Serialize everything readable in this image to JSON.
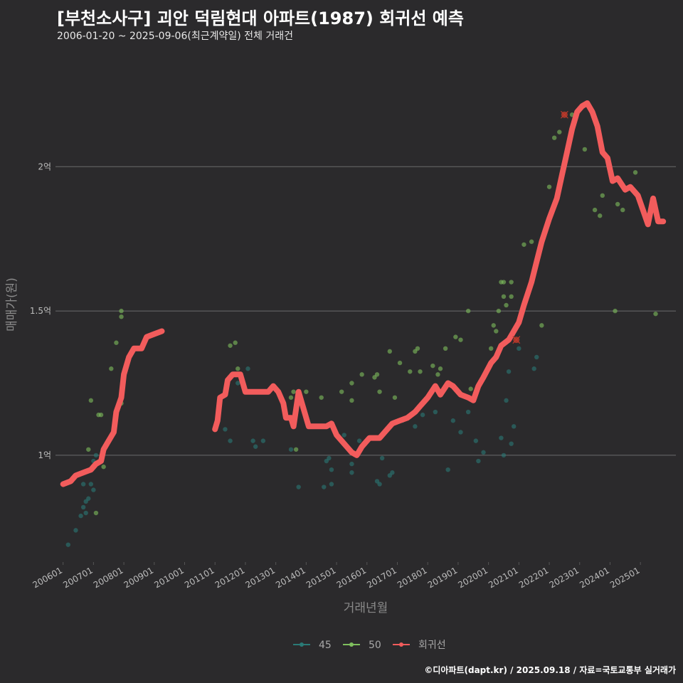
{
  "header": {
    "title": "[부천소사구] 괴안 덕림현대 아파트(1987) 회귀선 예측",
    "subtitle": "2006-01-20 ~ 2025-09-06(최근계약일) 전체 거래건"
  },
  "caption": "©디아파트(dapt.kr) / 2025.09.18 / 자료=국토교통부 실거래가",
  "colors": {
    "background": "#2b2a2c",
    "grid": "#6b6b6b",
    "series_45": "#2a7a76",
    "series_50": "#7fbf5e",
    "regression": "#f25c5c",
    "outlier": "#c0392b"
  },
  "chart_data": {
    "type": "scatter",
    "xlabel": "거래년월",
    "ylabel": "매매가(원)",
    "x_range": [
      "2005-10",
      "2026-03"
    ],
    "ylim": [
      0.63,
      2.4
    ],
    "y_unit": "억",
    "y_ticks": [
      {
        "value": 1.0,
        "label": "1억"
      },
      {
        "value": 1.5,
        "label": "1.5억"
      },
      {
        "value": 2.0,
        "label": "2억"
      }
    ],
    "x_ticks": [
      "200601",
      "200701",
      "200801",
      "200901",
      "201001",
      "201101",
      "201201",
      "201301",
      "201401",
      "201501",
      "201601",
      "201701",
      "201801",
      "201901",
      "202001",
      "202101",
      "202201",
      "202301",
      "202401",
      "202501"
    ],
    "grid": true,
    "legend_position": "bottom",
    "legend": [
      {
        "name": "45",
        "color": "#2a7a76"
      },
      {
        "name": "50",
        "color": "#7fbf5e"
      },
      {
        "name": "회귀선",
        "color": "#f25c5c"
      }
    ],
    "series": [
      {
        "name": "45",
        "points": [
          [
            "2006-03",
            0.69
          ],
          [
            "2006-06",
            0.74
          ],
          [
            "2006-08",
            0.79
          ],
          [
            "2006-09",
            0.82
          ],
          [
            "2006-10",
            0.84
          ],
          [
            "2006-11",
            0.85
          ],
          [
            "2006-12",
            0.9
          ],
          [
            "2007-01",
            0.98
          ],
          [
            "2007-02",
            1.0
          ],
          [
            "2007-01",
            0.88
          ],
          [
            "2006-10",
            0.8
          ],
          [
            "2006-09",
            0.9
          ],
          [
            "2011-05",
            1.09
          ],
          [
            "2011-07",
            1.05
          ],
          [
            "2011-10",
            1.25
          ],
          [
            "2012-02",
            1.3
          ],
          [
            "2012-04",
            1.05
          ],
          [
            "2012-05",
            1.03
          ],
          [
            "2012-08",
            1.05
          ],
          [
            "2013-07",
            1.02
          ],
          [
            "2013-10",
            0.89
          ],
          [
            "2014-08",
            0.89
          ],
          [
            "2014-09",
            0.98
          ],
          [
            "2014-10",
            0.99
          ],
          [
            "2014-11",
            0.95
          ],
          [
            "2014-11",
            0.9
          ],
          [
            "2015-04",
            1.07
          ],
          [
            "2015-07",
            0.97
          ],
          [
            "2015-07",
            0.94
          ],
          [
            "2015-10",
            1.05
          ],
          [
            "2016-02",
            1.06
          ],
          [
            "2016-05",
            0.91
          ],
          [
            "2016-06",
            0.9
          ],
          [
            "2016-07",
            0.99
          ],
          [
            "2016-10",
            0.93
          ],
          [
            "2016-11",
            0.94
          ],
          [
            "2017-03",
            1.12
          ],
          [
            "2017-08",
            1.1
          ],
          [
            "2017-10",
            1.17
          ],
          [
            "2017-11",
            1.14
          ],
          [
            "2018-04",
            1.15
          ],
          [
            "2018-09",
            0.95
          ],
          [
            "2018-11",
            1.12
          ],
          [
            "2019-02",
            1.08
          ],
          [
            "2019-05",
            1.15
          ],
          [
            "2019-08",
            1.05
          ],
          [
            "2019-09",
            0.98
          ],
          [
            "2019-11",
            1.01
          ],
          [
            "2020-06",
            1.06
          ],
          [
            "2020-07",
            1.0
          ],
          [
            "2020-08",
            1.19
          ],
          [
            "2020-09",
            1.29
          ],
          [
            "2020-10",
            1.04
          ],
          [
            "2020-11",
            1.1
          ],
          [
            "2021-01",
            1.37
          ],
          [
            "2021-07",
            1.3
          ],
          [
            "2021-08",
            1.34
          ]
        ]
      },
      {
        "name": "50",
        "points": [
          [
            "2006-11",
            1.02
          ],
          [
            "2006-12",
            1.19
          ],
          [
            "2007-02",
            0.8
          ],
          [
            "2007-03",
            1.14
          ],
          [
            "2007-04",
            1.14
          ],
          [
            "2007-05",
            0.96
          ],
          [
            "2007-08",
            1.3
          ],
          [
            "2007-10",
            1.39
          ],
          [
            "2007-12",
            1.18
          ],
          [
            "2007-12",
            1.48
          ],
          [
            "2007-12",
            1.5
          ],
          [
            "2011-07",
            1.38
          ],
          [
            "2011-09",
            1.39
          ],
          [
            "2011-10",
            1.3
          ],
          [
            "2013-07",
            1.2
          ],
          [
            "2013-08",
            1.22
          ],
          [
            "2013-09",
            1.02
          ],
          [
            "2014-01",
            1.22
          ],
          [
            "2014-07",
            1.2
          ],
          [
            "2015-03",
            1.22
          ],
          [
            "2015-07",
            1.19
          ],
          [
            "2015-07",
            1.25
          ],
          [
            "2015-11",
            1.28
          ],
          [
            "2016-04",
            1.27
          ],
          [
            "2016-05",
            1.28
          ],
          [
            "2016-06",
            1.22
          ],
          [
            "2016-10",
            1.36
          ],
          [
            "2016-12",
            1.2
          ],
          [
            "2017-02",
            1.32
          ],
          [
            "2017-06",
            1.29
          ],
          [
            "2017-08",
            1.36
          ],
          [
            "2017-09",
            1.37
          ],
          [
            "2017-10",
            1.29
          ],
          [
            "2018-03",
            1.31
          ],
          [
            "2018-05",
            1.28
          ],
          [
            "2018-06",
            1.3
          ],
          [
            "2018-08",
            1.37
          ],
          [
            "2018-12",
            1.41
          ],
          [
            "2019-02",
            1.4
          ],
          [
            "2019-05",
            1.5
          ],
          [
            "2019-06",
            1.23
          ],
          [
            "2020-02",
            1.37
          ],
          [
            "2020-03",
            1.33
          ],
          [
            "2020-03",
            1.45
          ],
          [
            "2020-04",
            1.43
          ],
          [
            "2020-05",
            1.5
          ],
          [
            "2020-06",
            1.6
          ],
          [
            "2020-07",
            1.6
          ],
          [
            "2020-07",
            1.55
          ],
          [
            "2020-08",
            1.52
          ],
          [
            "2020-10",
            1.55
          ],
          [
            "2020-10",
            1.6
          ],
          [
            "2021-03",
            1.73
          ],
          [
            "2021-06",
            1.74
          ],
          [
            "2021-10",
            1.45
          ],
          [
            "2022-01",
            1.93
          ],
          [
            "2022-03",
            2.1
          ],
          [
            "2022-05",
            2.12
          ],
          [
            "2022-10",
            2.18
          ],
          [
            "2023-03",
            2.06
          ],
          [
            "2023-07",
            1.85
          ],
          [
            "2023-09",
            1.83
          ],
          [
            "2023-10",
            1.9
          ],
          [
            "2024-03",
            1.5
          ],
          [
            "2024-04",
            1.87
          ],
          [
            "2024-06",
            1.85
          ],
          [
            "2024-11",
            1.98
          ],
          [
            "2025-07",
            1.49
          ]
        ]
      }
    ],
    "outliers": [
      [
        "2022-07",
        2.18
      ],
      [
        "2020-12",
        1.4
      ]
    ],
    "regression_segments": [
      [
        [
          "2006-01",
          0.9
        ],
        [
          "2006-04",
          0.91
        ],
        [
          "2006-06",
          0.93
        ],
        [
          "2006-09",
          0.94
        ],
        [
          "2006-12",
          0.95
        ],
        [
          "2007-02",
          0.97
        ],
        [
          "2007-04",
          0.98
        ],
        [
          "2007-05",
          1.02
        ],
        [
          "2007-07",
          1.05
        ],
        [
          "2007-09",
          1.08
        ],
        [
          "2007-10",
          1.15
        ],
        [
          "2007-12",
          1.2
        ],
        [
          "2008-01",
          1.28
        ],
        [
          "2008-03",
          1.34
        ],
        [
          "2008-05",
          1.37
        ],
        [
          "2008-08",
          1.37
        ],
        [
          "2008-10",
          1.41
        ],
        [
          "2009-01",
          1.42
        ],
        [
          "2009-04",
          1.43
        ]
      ],
      [
        [
          "2011-01",
          1.09
        ],
        [
          "2011-02",
          1.12
        ],
        [
          "2011-03",
          1.2
        ],
        [
          "2011-05",
          1.21
        ],
        [
          "2011-06",
          1.26
        ],
        [
          "2011-08",
          1.28
        ],
        [
          "2011-11",
          1.28
        ],
        [
          "2012-01",
          1.22
        ],
        [
          "2012-05",
          1.22
        ],
        [
          "2012-10",
          1.22
        ],
        [
          "2012-12",
          1.24
        ],
        [
          "2013-02",
          1.22
        ],
        [
          "2013-04",
          1.18
        ],
        [
          "2013-05",
          1.13
        ],
        [
          "2013-07",
          1.13
        ],
        [
          "2013-08",
          1.1
        ],
        [
          "2013-10",
          1.22
        ],
        [
          "2013-12",
          1.16
        ],
        [
          "2014-02",
          1.1
        ],
        [
          "2014-06",
          1.1
        ],
        [
          "2014-09",
          1.1
        ],
        [
          "2014-11",
          1.11
        ],
        [
          "2015-01",
          1.07
        ],
        [
          "2015-03",
          1.05
        ],
        [
          "2015-05",
          1.03
        ],
        [
          "2015-07",
          1.01
        ],
        [
          "2015-09",
          1.0
        ],
        [
          "2015-11",
          1.03
        ],
        [
          "2016-02",
          1.06
        ],
        [
          "2016-06",
          1.06
        ],
        [
          "2016-08",
          1.08
        ],
        [
          "2016-11",
          1.11
        ],
        [
          "2017-02",
          1.12
        ],
        [
          "2017-05",
          1.13
        ],
        [
          "2017-08",
          1.15
        ],
        [
          "2017-10",
          1.17
        ],
        [
          "2018-01",
          1.2
        ],
        [
          "2018-04",
          1.24
        ],
        [
          "2018-06",
          1.21
        ],
        [
          "2018-09",
          1.25
        ],
        [
          "2018-11",
          1.24
        ],
        [
          "2019-02",
          1.21
        ],
        [
          "2019-05",
          1.2
        ],
        [
          "2019-07",
          1.19
        ],
        [
          "2019-09",
          1.24
        ],
        [
          "2019-11",
          1.27
        ],
        [
          "2020-02",
          1.32
        ],
        [
          "2020-04",
          1.34
        ],
        [
          "2020-06",
          1.38
        ],
        [
          "2020-09",
          1.4
        ],
        [
          "2020-11",
          1.43
        ],
        [
          "2021-01",
          1.46
        ],
        [
          "2021-03",
          1.52
        ],
        [
          "2021-06",
          1.6
        ],
        [
          "2021-08",
          1.67
        ],
        [
          "2021-10",
          1.74
        ],
        [
          "2022-01",
          1.82
        ],
        [
          "2022-04",
          1.89
        ],
        [
          "2022-06",
          1.97
        ],
        [
          "2022-08",
          2.05
        ],
        [
          "2022-10",
          2.13
        ],
        [
          "2022-12",
          2.19
        ],
        [
          "2023-02",
          2.21
        ],
        [
          "2023-04",
          2.22
        ],
        [
          "2023-06",
          2.19
        ],
        [
          "2023-08",
          2.14
        ],
        [
          "2023-10",
          2.05
        ],
        [
          "2023-12",
          2.03
        ],
        [
          "2024-02",
          1.95
        ],
        [
          "2024-04",
          1.96
        ],
        [
          "2024-07",
          1.92
        ],
        [
          "2024-09",
          1.93
        ],
        [
          "2024-12",
          1.9
        ],
        [
          "2025-02",
          1.85
        ],
        [
          "2025-04",
          1.8
        ],
        [
          "2025-06",
          1.89
        ],
        [
          "2025-08",
          1.81
        ],
        [
          "2025-10",
          1.81
        ]
      ]
    ]
  }
}
